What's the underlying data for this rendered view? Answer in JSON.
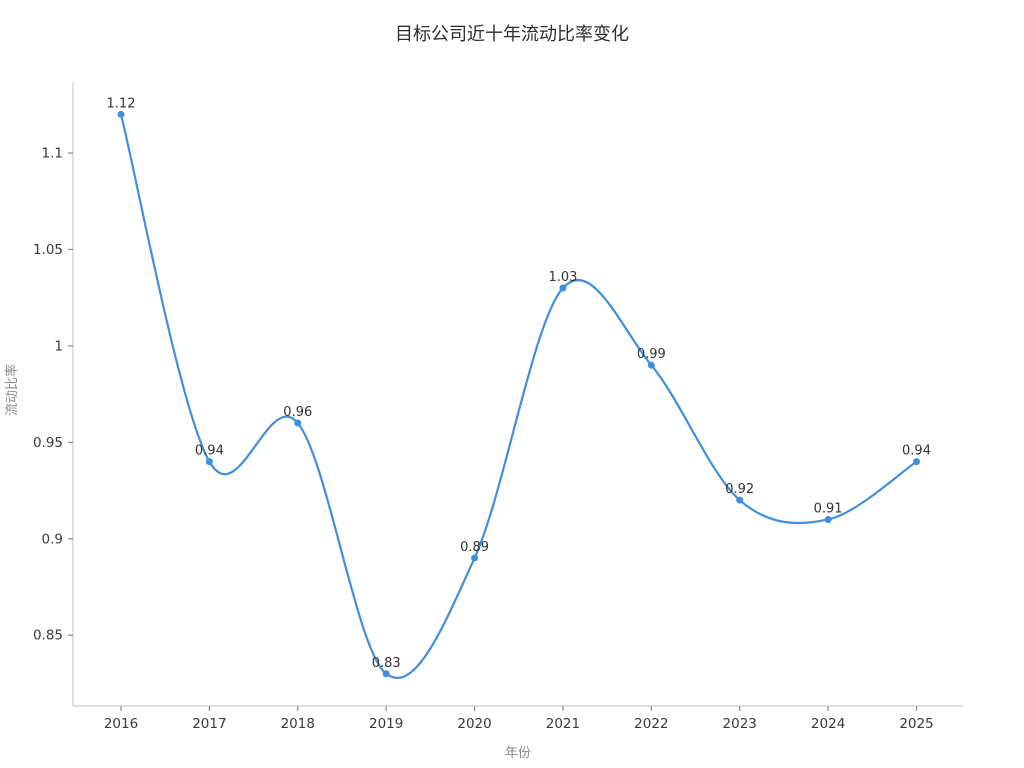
{
  "page": {
    "background": "#ffffff"
  },
  "chart_data": {
    "type": "line",
    "title": "目标公司近十年流动比率变化",
    "xlabel": "年份",
    "ylabel": "流动比率",
    "categories": [
      "2016",
      "2017",
      "2018",
      "2019",
      "2020",
      "2021",
      "2022",
      "2023",
      "2024",
      "2025"
    ],
    "series": [
      {
        "name": "流动比率",
        "values": [
          1.12,
          0.94,
          0.96,
          0.83,
          0.89,
          1.03,
          0.99,
          0.92,
          0.91,
          0.94
        ],
        "point_labels": [
          "1.12",
          "0.94",
          "0.96",
          "0.83",
          "0.89",
          "1.03",
          "0.99",
          "0.92",
          "0.91",
          "0.94"
        ]
      }
    ],
    "y_ticks": [
      0.85,
      0.9,
      0.95,
      1,
      1.05,
      1.1
    ],
    "y_tick_labels": [
      "0.85",
      "0.9",
      "0.95",
      "1",
      "1.05",
      "1.1"
    ],
    "ylim": [
      0.8133,
      1.1368
    ],
    "smooth": true,
    "grid": false,
    "legend_position": "none",
    "colors": {
      "line": "#3E8FE0",
      "marker": "#3E8FE0",
      "axis_line": "#cccccc",
      "tick_mark": "#8a8a8a",
      "tick_label": "#3a3a3a",
      "point_label": "#333333",
      "axis_title": "#8a8a8a",
      "title": "#2e2e2e"
    }
  }
}
